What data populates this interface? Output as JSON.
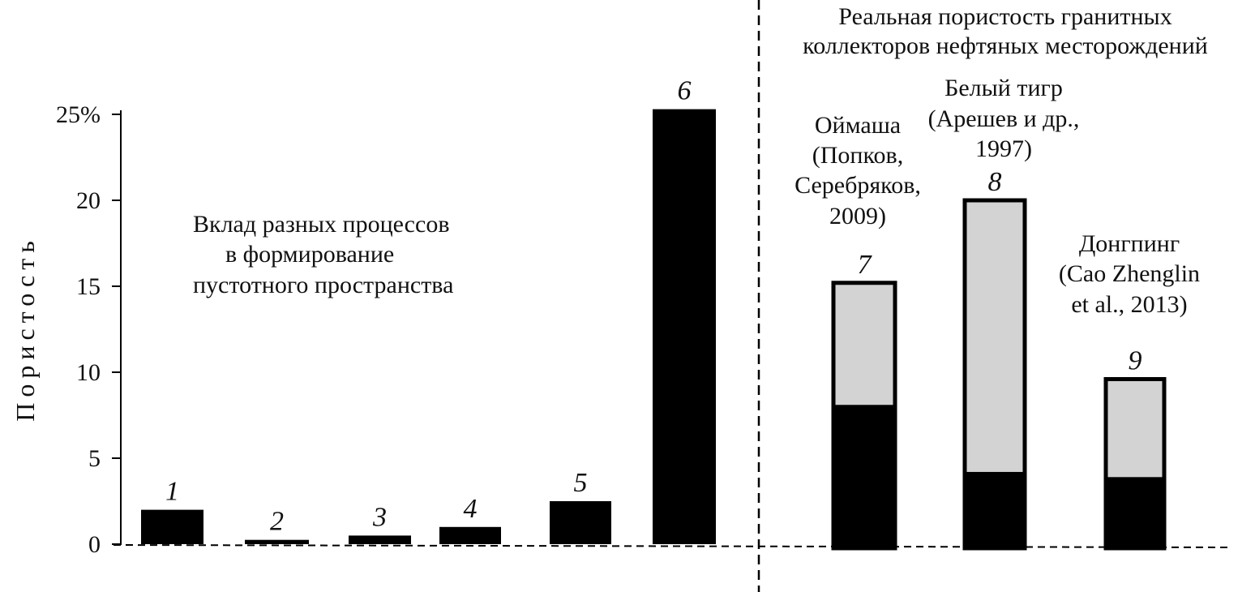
{
  "colors": {
    "solid": "#000000",
    "light": "#d3d3d3",
    "background": "#ffffff"
  },
  "chart_data": {
    "type": "bar",
    "ylabel": "Пористость",
    "ylim": [
      0,
      25
    ],
    "yticks": [
      "0",
      "5",
      "10",
      "15",
      "20",
      "25%"
    ],
    "left_panel_caption": [
      "Вклад разных процессов",
      "в формирование",
      "пустотного пространства"
    ],
    "right_panel_caption": [
      "Реальная пористость гранитных",
      "коллекторов нефтяных месторождений"
    ],
    "bars": [
      {
        "id": "1",
        "total": 2.0,
        "solid": 2.0,
        "source": []
      },
      {
        "id": "2",
        "total": 0.25,
        "solid": 0.25,
        "source": []
      },
      {
        "id": "3",
        "total": 0.5,
        "solid": 0.5,
        "source": []
      },
      {
        "id": "4",
        "total": 1.0,
        "solid": 1.0,
        "source": []
      },
      {
        "id": "5",
        "total": 2.5,
        "solid": 2.5,
        "source": []
      },
      {
        "id": "6",
        "total": 25.3,
        "solid": 25.3,
        "source": []
      },
      {
        "id": "7",
        "total": 15.2,
        "solid": 8.1,
        "source": [
          "Оймаша",
          "(Попков,",
          "Серебряков,",
          "2009)"
        ]
      },
      {
        "id": "8",
        "total": 20.0,
        "solid": 4.2,
        "source": [
          "Белый тигр",
          "(Арешев и др.,",
          "1997)"
        ]
      },
      {
        "id": "9",
        "total": 9.6,
        "solid": 3.9,
        "source": [
          "Донгпинг",
          "(Cao Zhenglin",
          "et al., 2013)"
        ]
      }
    ]
  }
}
